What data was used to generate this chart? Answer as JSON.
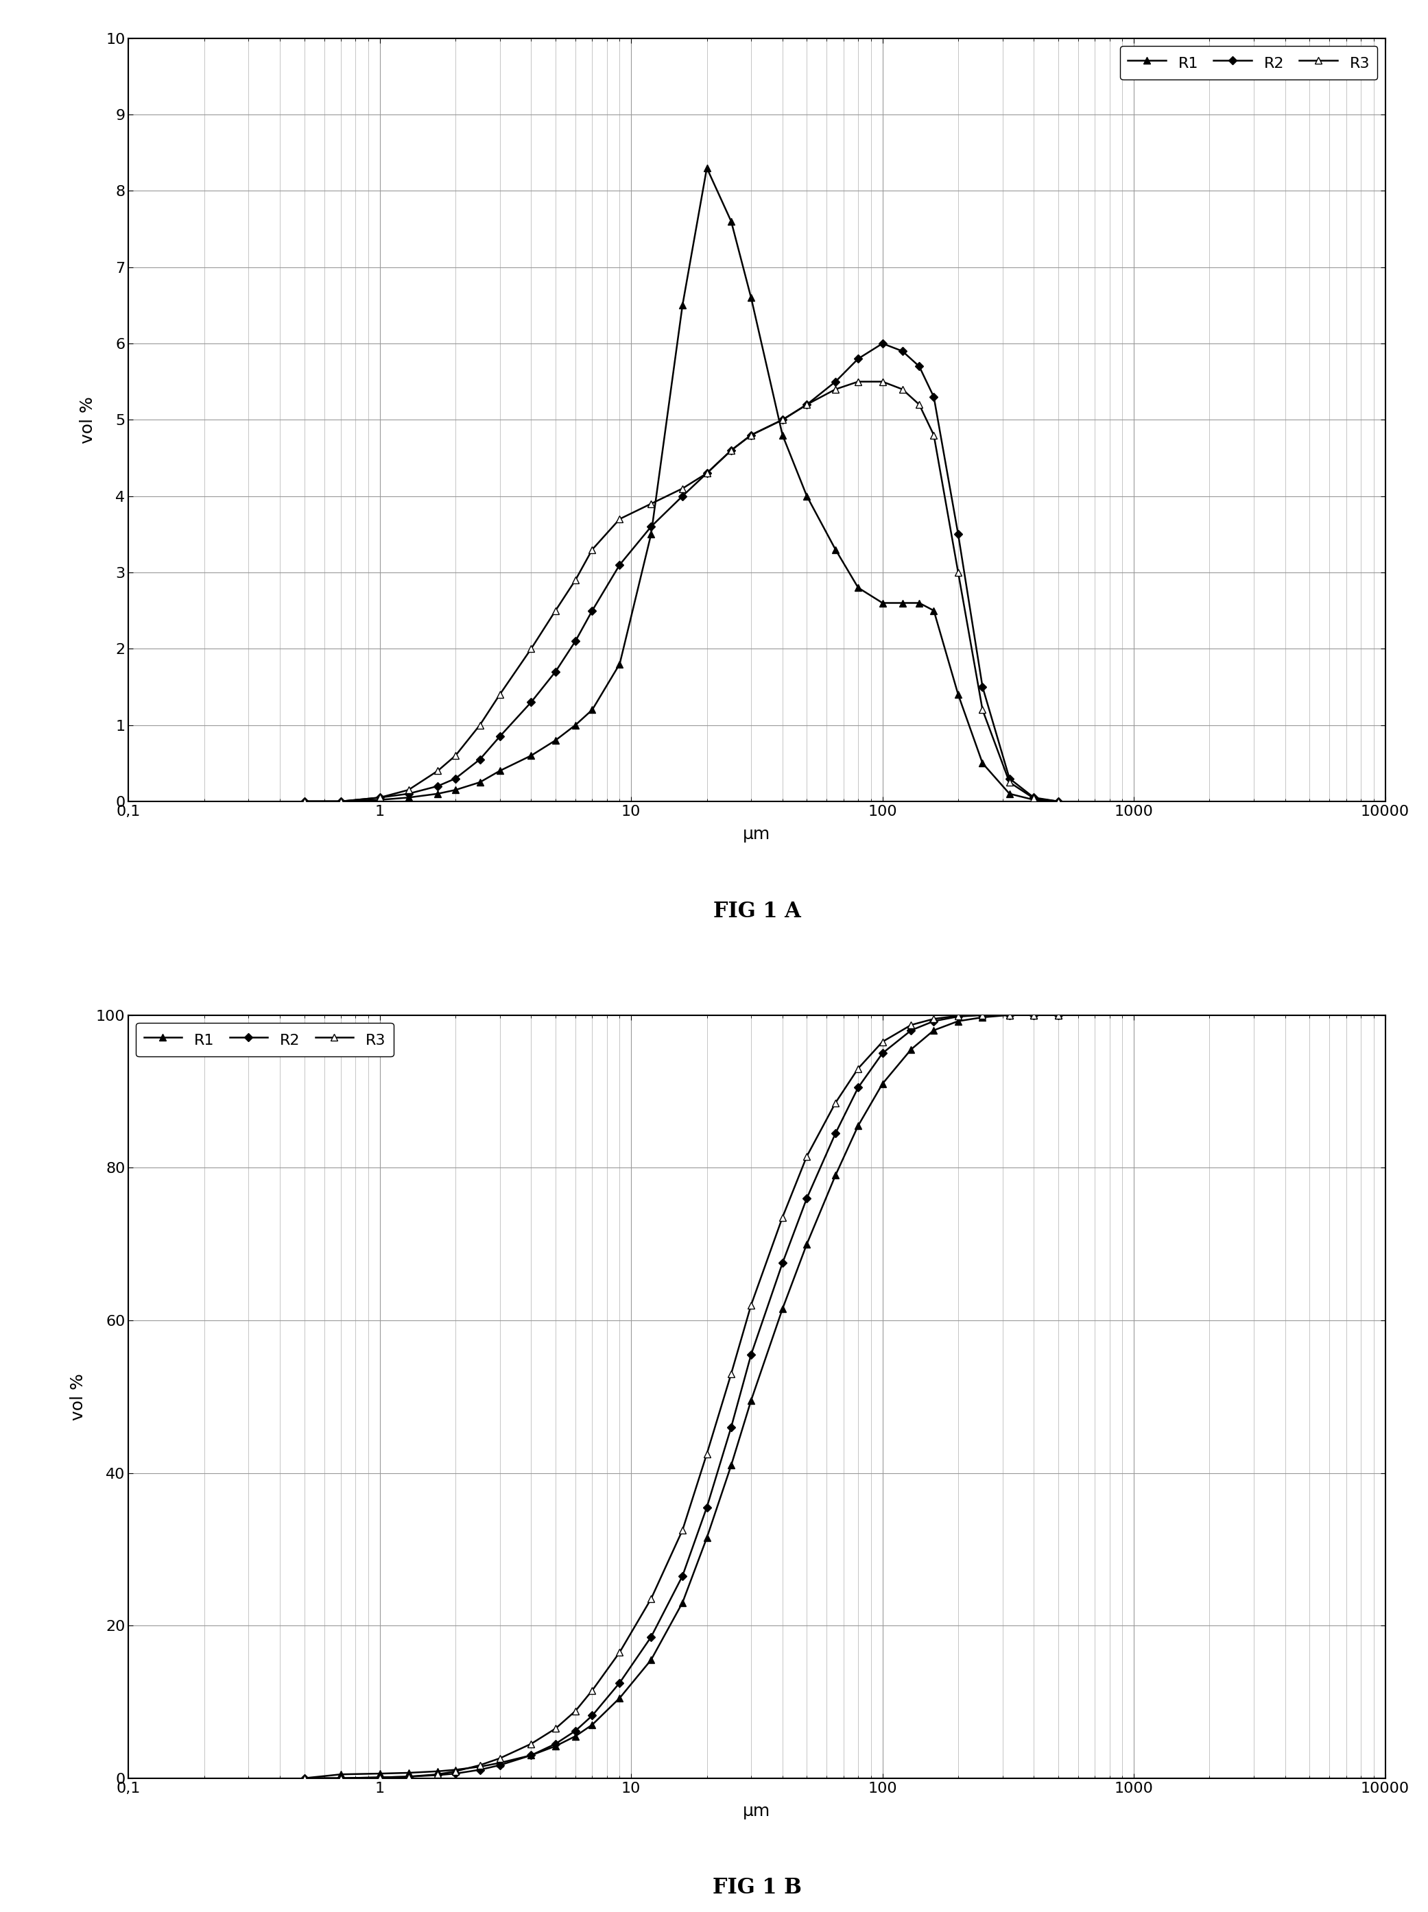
{
  "fig1a": {
    "title": "FIG 1 A",
    "xlabel": "μm",
    "ylabel": "vol %",
    "xlim": [
      0.1,
      10000
    ],
    "ylim": [
      0,
      10
    ],
    "yticks": [
      0,
      1,
      2,
      3,
      4,
      5,
      6,
      7,
      8,
      9,
      10
    ],
    "R1_x": [
      0.5,
      0.7,
      1.0,
      1.3,
      1.7,
      2.0,
      2.5,
      3.0,
      4.0,
      5.0,
      6.0,
      7.0,
      9.0,
      12.0,
      16.0,
      20.0,
      25.0,
      30.0,
      40.0,
      50.0,
      65.0,
      80.0,
      100.0,
      120.0,
      140.0,
      160.0,
      200.0,
      250.0,
      320.0,
      400.0,
      500.0
    ],
    "R1_y": [
      0.0,
      0.0,
      0.02,
      0.05,
      0.1,
      0.15,
      0.25,
      0.4,
      0.6,
      0.8,
      1.0,
      1.2,
      1.8,
      3.5,
      6.5,
      8.3,
      7.6,
      6.6,
      4.8,
      4.0,
      3.3,
      2.8,
      2.6,
      2.6,
      2.6,
      2.5,
      1.4,
      0.5,
      0.1,
      0.02,
      0.0
    ],
    "R2_x": [
      0.5,
      0.7,
      1.0,
      1.3,
      1.7,
      2.0,
      2.5,
      3.0,
      4.0,
      5.0,
      6.0,
      7.0,
      9.0,
      12.0,
      16.0,
      20.0,
      25.0,
      30.0,
      40.0,
      50.0,
      65.0,
      80.0,
      100.0,
      120.0,
      140.0,
      160.0,
      200.0,
      250.0,
      320.0,
      400.0,
      500.0
    ],
    "R2_y": [
      0.0,
      0.0,
      0.05,
      0.1,
      0.2,
      0.3,
      0.55,
      0.85,
      1.3,
      1.7,
      2.1,
      2.5,
      3.1,
      3.6,
      4.0,
      4.3,
      4.6,
      4.8,
      5.0,
      5.2,
      5.5,
      5.8,
      6.0,
      5.9,
      5.7,
      5.3,
      3.5,
      1.5,
      0.3,
      0.05,
      0.0
    ],
    "R3_x": [
      0.5,
      0.7,
      1.0,
      1.3,
      1.7,
      2.0,
      2.5,
      3.0,
      4.0,
      5.0,
      6.0,
      7.0,
      9.0,
      12.0,
      16.0,
      20.0,
      25.0,
      30.0,
      40.0,
      50.0,
      65.0,
      80.0,
      100.0,
      120.0,
      140.0,
      160.0,
      200.0,
      250.0,
      320.0,
      400.0,
      500.0
    ],
    "R3_y": [
      0.0,
      0.0,
      0.05,
      0.15,
      0.4,
      0.6,
      1.0,
      1.4,
      2.0,
      2.5,
      2.9,
      3.3,
      3.7,
      3.9,
      4.1,
      4.3,
      4.6,
      4.8,
      5.0,
      5.2,
      5.4,
      5.5,
      5.5,
      5.4,
      5.2,
      4.8,
      3.0,
      1.2,
      0.25,
      0.04,
      0.0
    ]
  },
  "fig1b": {
    "title": "FIG 1 B",
    "xlabel": "μm",
    "ylabel": "vol %",
    "xlim": [
      0.1,
      10000
    ],
    "ylim": [
      0,
      100
    ],
    "yticks": [
      0,
      20,
      40,
      60,
      80,
      100
    ],
    "R1_x": [
      0.5,
      0.7,
      1.0,
      1.3,
      1.7,
      2.0,
      2.5,
      3.0,
      4.0,
      5.0,
      6.0,
      7.0,
      9.0,
      12.0,
      16.0,
      20.0,
      25.0,
      30.0,
      40.0,
      50.0,
      65.0,
      80.0,
      100.0,
      130.0,
      160.0,
      200.0,
      250.0,
      320.0,
      400.0,
      500.0
    ],
    "R1_y": [
      0.0,
      0.5,
      0.6,
      0.7,
      0.9,
      1.1,
      1.5,
      2.0,
      3.0,
      4.2,
      5.5,
      7.0,
      10.5,
      15.5,
      23.0,
      31.5,
      41.0,
      49.5,
      61.5,
      70.0,
      79.0,
      85.5,
      91.0,
      95.5,
      98.0,
      99.2,
      99.7,
      100.0,
      100.0,
      100.0
    ],
    "R2_x": [
      0.5,
      0.7,
      1.0,
      1.3,
      1.7,
      2.0,
      2.5,
      3.0,
      4.0,
      5.0,
      6.0,
      7.0,
      9.0,
      12.0,
      16.0,
      20.0,
      25.0,
      30.0,
      40.0,
      50.0,
      65.0,
      80.0,
      100.0,
      130.0,
      160.0,
      200.0,
      250.0,
      320.0,
      400.0,
      500.0
    ],
    "R2_y": [
      0.0,
      0.0,
      0.1,
      0.2,
      0.4,
      0.6,
      1.1,
      1.7,
      3.0,
      4.5,
      6.2,
      8.2,
      12.5,
      18.5,
      26.5,
      35.5,
      46.0,
      55.5,
      67.5,
      76.0,
      84.5,
      90.5,
      95.0,
      98.0,
      99.2,
      99.8,
      100.0,
      100.0,
      100.0,
      100.0
    ],
    "R3_x": [
      0.5,
      0.7,
      1.0,
      1.3,
      1.7,
      2.0,
      2.5,
      3.0,
      4.0,
      5.0,
      6.0,
      7.0,
      9.0,
      12.0,
      16.0,
      20.0,
      25.0,
      30.0,
      40.0,
      50.0,
      65.0,
      80.0,
      100.0,
      130.0,
      160.0,
      200.0,
      250.0,
      320.0,
      400.0,
      500.0
    ],
    "R3_y": [
      0.0,
      0.0,
      0.1,
      0.2,
      0.5,
      0.9,
      1.7,
      2.6,
      4.5,
      6.5,
      8.8,
      11.5,
      16.5,
      23.5,
      32.5,
      42.5,
      53.0,
      62.0,
      73.5,
      81.5,
      88.5,
      93.0,
      96.5,
      98.7,
      99.5,
      99.9,
      100.0,
      100.0,
      100.0,
      100.0
    ]
  },
  "line_color": "#000000",
  "marker_size": 7,
  "line_width": 1.8,
  "background_color": "#ffffff",
  "grid_color": "#999999",
  "font_size_labels": 18,
  "font_size_title": 22,
  "font_size_ticks": 16,
  "font_size_legend": 16
}
